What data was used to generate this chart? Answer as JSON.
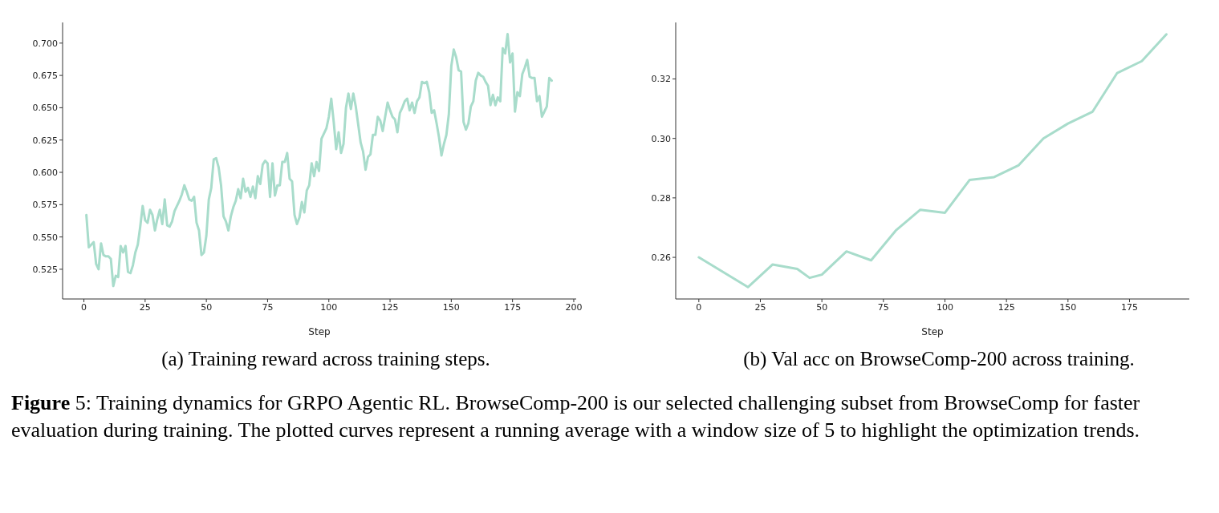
{
  "chart_data": [
    {
      "type": "line",
      "title": "(a) Training reward across training steps.",
      "xlabel": "Step",
      "marker": "none",
      "xlim": [
        -8.7,
        201
      ],
      "xticks": [
        0,
        25,
        50,
        75,
        100,
        125,
        150,
        175,
        200
      ],
      "ylim": [
        0.502,
        0.716
      ],
      "yticks": [
        {
          "value": 0.525,
          "label": "0.525"
        },
        {
          "value": 0.55,
          "label": "0.550"
        },
        {
          "value": 0.575,
          "label": "0.575"
        },
        {
          "value": 0.6,
          "label": "0.600"
        },
        {
          "value": 0.625,
          "label": "0.625"
        },
        {
          "value": 0.65,
          "label": "0.650"
        },
        {
          "value": 0.675,
          "label": "0.675"
        },
        {
          "value": 0.7,
          "label": "0.700"
        }
      ],
      "annotations": [
        "Figure 5: Training dynamics for GRPO Agentic RL. BrowseComp-200 is our selected challenging subset from BrowseComp for faster evaluation during training. The plotted curves represent a running average with a window size of 5 to highlight the optimization trends."
      ],
      "series": [
        {
          "color": "#a8dccb",
          "x": [
            1,
            2,
            3,
            4,
            5,
            6,
            7,
            8,
            9,
            10,
            11,
            12,
            13,
            14,
            15,
            16,
            17,
            18,
            19,
            20,
            21,
            22,
            23,
            24,
            25,
            26,
            27,
            28,
            29,
            30,
            31,
            32,
            33,
            34,
            35,
            36,
            37,
            38,
            39,
            40,
            41,
            42,
            43,
            44,
            45,
            46,
            47,
            48,
            49,
            50,
            51,
            52,
            53,
            54,
            55,
            56,
            57,
            58,
            59,
            60,
            61,
            62,
            63,
            64,
            65,
            66,
            67,
            68,
            69,
            70,
            71,
            72,
            73,
            74,
            75,
            76,
            77,
            78,
            79,
            80,
            81,
            82,
            83,
            84,
            85,
            86,
            87,
            88,
            89,
            90,
            91,
            92,
            93,
            94,
            95,
            96,
            97,
            98,
            99,
            100,
            101,
            102,
            103,
            104,
            105,
            106,
            107,
            108,
            109,
            110,
            111,
            112,
            113,
            114,
            115,
            116,
            117,
            118,
            119,
            120,
            121,
            122,
            123,
            124,
            125,
            126,
            127,
            128,
            129,
            130,
            131,
            132,
            133,
            134,
            135,
            136,
            137,
            138,
            139,
            140,
            141,
            142,
            143,
            144,
            145,
            146,
            147,
            148,
            149,
            150,
            151,
            152,
            153,
            154,
            155,
            156,
            157,
            158,
            159,
            160,
            161,
            162,
            163,
            164,
            165,
            166,
            167,
            168,
            169,
            170,
            171,
            172,
            173,
            174,
            175,
            176,
            177,
            178,
            179,
            180,
            181,
            182,
            183,
            184,
            185,
            186,
            187,
            188,
            189,
            190,
            191
          ],
          "values": [
            0.567,
            0.542,
            0.544,
            0.546,
            0.529,
            0.525,
            0.545,
            0.536,
            0.535,
            0.535,
            0.533,
            0.512,
            0.52,
            0.519,
            0.543,
            0.538,
            0.543,
            0.523,
            0.522,
            0.528,
            0.538,
            0.544,
            0.558,
            0.574,
            0.563,
            0.561,
            0.571,
            0.567,
            0.555,
            0.564,
            0.571,
            0.56,
            0.579,
            0.559,
            0.558,
            0.562,
            0.57,
            0.574,
            0.578,
            0.583,
            0.59,
            0.585,
            0.579,
            0.578,
            0.581,
            0.561,
            0.555,
            0.536,
            0.538,
            0.551,
            0.579,
            0.588,
            0.61,
            0.611,
            0.604,
            0.59,
            0.566,
            0.562,
            0.555,
            0.566,
            0.573,
            0.578,
            0.587,
            0.58,
            0.595,
            0.585,
            0.588,
            0.581,
            0.589,
            0.58,
            0.597,
            0.591,
            0.606,
            0.609,
            0.607,
            0.581,
            0.607,
            0.582,
            0.59,
            0.59,
            0.608,
            0.608,
            0.615,
            0.595,
            0.593,
            0.567,
            0.56,
            0.565,
            0.577,
            0.569,
            0.586,
            0.59,
            0.607,
            0.597,
            0.608,
            0.601,
            0.626,
            0.63,
            0.634,
            0.643,
            0.657,
            0.639,
            0.618,
            0.631,
            0.615,
            0.622,
            0.65,
            0.661,
            0.649,
            0.661,
            0.651,
            0.637,
            0.623,
            0.616,
            0.602,
            0.612,
            0.614,
            0.629,
            0.629,
            0.643,
            0.64,
            0.632,
            0.643,
            0.654,
            0.648,
            0.643,
            0.641,
            0.631,
            0.646,
            0.65,
            0.655,
            0.657,
            0.648,
            0.654,
            0.646,
            0.655,
            0.658,
            0.67,
            0.669,
            0.67,
            0.662,
            0.646,
            0.648,
            0.638,
            0.627,
            0.613,
            0.622,
            0.629,
            0.645,
            0.682,
            0.695,
            0.689,
            0.679,
            0.678,
            0.639,
            0.633,
            0.638,
            0.651,
            0.655,
            0.671,
            0.677,
            0.675,
            0.674,
            0.67,
            0.667,
            0.652,
            0.66,
            0.652,
            0.658,
            0.655,
            0.696,
            0.692,
            0.707,
            0.685,
            0.692,
            0.647,
            0.662,
            0.659,
            0.676,
            0.681,
            0.687,
            0.674,
            0.673,
            0.673,
            0.655,
            0.659,
            0.643,
            0.647,
            0.651,
            0.673,
            0.671
          ]
        }
      ]
    },
    {
      "type": "line",
      "title": "(b) Val acc on BrowseComp-200 across training.",
      "xlabel": "Step",
      "marker": "none",
      "xlim": [
        -9.4,
        199.3
      ],
      "xticks": [
        0,
        25,
        50,
        75,
        100,
        125,
        150,
        175
      ],
      "ylim": [
        0.246,
        0.339
      ],
      "yticks": [
        {
          "value": 0.26,
          "label": "0.26"
        },
        {
          "value": 0.28,
          "label": "0.28"
        },
        {
          "value": 0.3,
          "label": "0.30"
        },
        {
          "value": 0.32,
          "label": "0.32"
        }
      ],
      "series": [
        {
          "color": "#a8dccb",
          "x": [
            0,
            20,
            30,
            40,
            45,
            50,
            60,
            70,
            80,
            90,
            100,
            110,
            120,
            130,
            140,
            150,
            160,
            170,
            180,
            190
          ],
          "values": [
            0.26,
            0.25,
            0.2576,
            0.2561,
            0.2531,
            0.2542,
            0.262,
            0.259,
            0.269,
            0.276,
            0.275,
            0.286,
            0.287,
            0.291,
            0.3,
            0.305,
            0.309,
            0.322,
            0.326,
            0.335
          ]
        }
      ]
    }
  ]
}
